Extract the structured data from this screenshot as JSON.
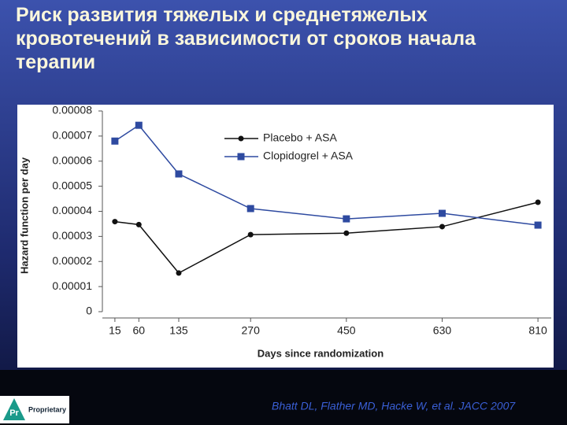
{
  "chart_data": {
    "type": "line",
    "title": "Риск развития тяжелых и среднетяжелых кровотечений в зависимости от сроков начала терапии",
    "x_label": "Days since randomization",
    "y_label": "Hazard function per day",
    "x": [
      15,
      60,
      135,
      270,
      450,
      630,
      810
    ],
    "series": [
      {
        "name": "Placebo + ASA",
        "color": "#111111",
        "marker": "circle",
        "values": [
          3.59e-05,
          3.47e-05,
          1.54e-05,
          3.07e-05,
          3.13e-05,
          3.39e-05,
          4.36e-05
        ]
      },
      {
        "name": "Clopidogrel + ASA",
        "color": "#2e4aa0",
        "marker": "square",
        "values": [
          6.8e-05,
          7.43e-05,
          5.49e-05,
          4.11e-05,
          3.7e-05,
          3.92e-05,
          3.45e-05
        ]
      }
    ],
    "xlim": [
      -10,
      835
    ],
    "xticks": [
      15,
      60,
      135,
      270,
      450,
      630,
      810
    ],
    "ylim": [
      0,
      8e-05
    ],
    "yticks": [
      0,
      1e-05,
      2e-05,
      3e-05,
      4e-05,
      5e-05,
      6e-05,
      7e-05,
      8e-05
    ],
    "legend": "top"
  },
  "footer": {
    "citation": "Bhatt DL, Flather MD, Hacke W, et al. JACC 2007",
    "logo_mark": "Pr",
    "logo_text": "Proprietary"
  }
}
